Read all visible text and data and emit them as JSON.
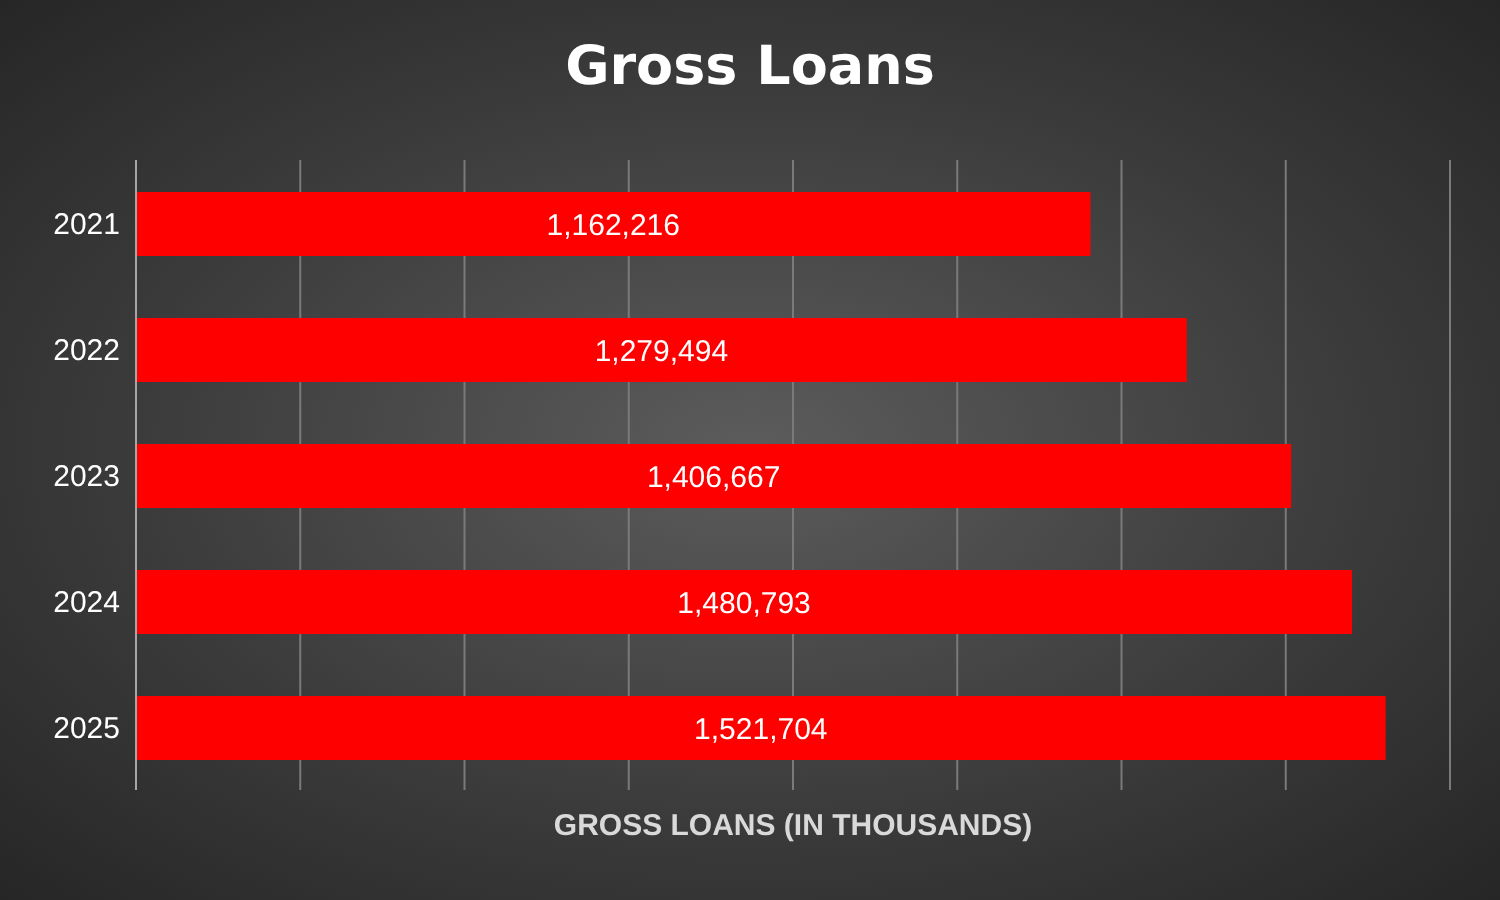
{
  "chart_data": {
    "type": "bar",
    "orientation": "horizontal",
    "title": "Gross Loans",
    "xlabel": "GROSS LOANS (IN THOUSANDS)",
    "categories": [
      "2021",
      "2022",
      "2023",
      "2024",
      "2025"
    ],
    "values": [
      1162216,
      1279494,
      1406667,
      1480793,
      1521704
    ],
    "color": "#ff0000",
    "value_labels": [
      "1,162,216",
      "1,279,494",
      "1,406,667",
      "1,480,793",
      "1,521,704"
    ],
    "xlim": [
      0,
      1600000
    ],
    "xticks": [
      {
        "value": 0,
        "label": null
      },
      {
        "value": 200000,
        "label": null
      },
      {
        "value": 400000,
        "label": null
      },
      {
        "value": 600000,
        "label": null
      },
      {
        "value": 800000,
        "label": null
      },
      {
        "value": 1000000,
        "label": null
      },
      {
        "value": 1200000,
        "label": null
      },
      {
        "value": 1400000,
        "label": null
      },
      {
        "value": 1600000,
        "label": null
      }
    ],
    "grid": "x",
    "tick_labels": "y",
    "legend": false
  }
}
